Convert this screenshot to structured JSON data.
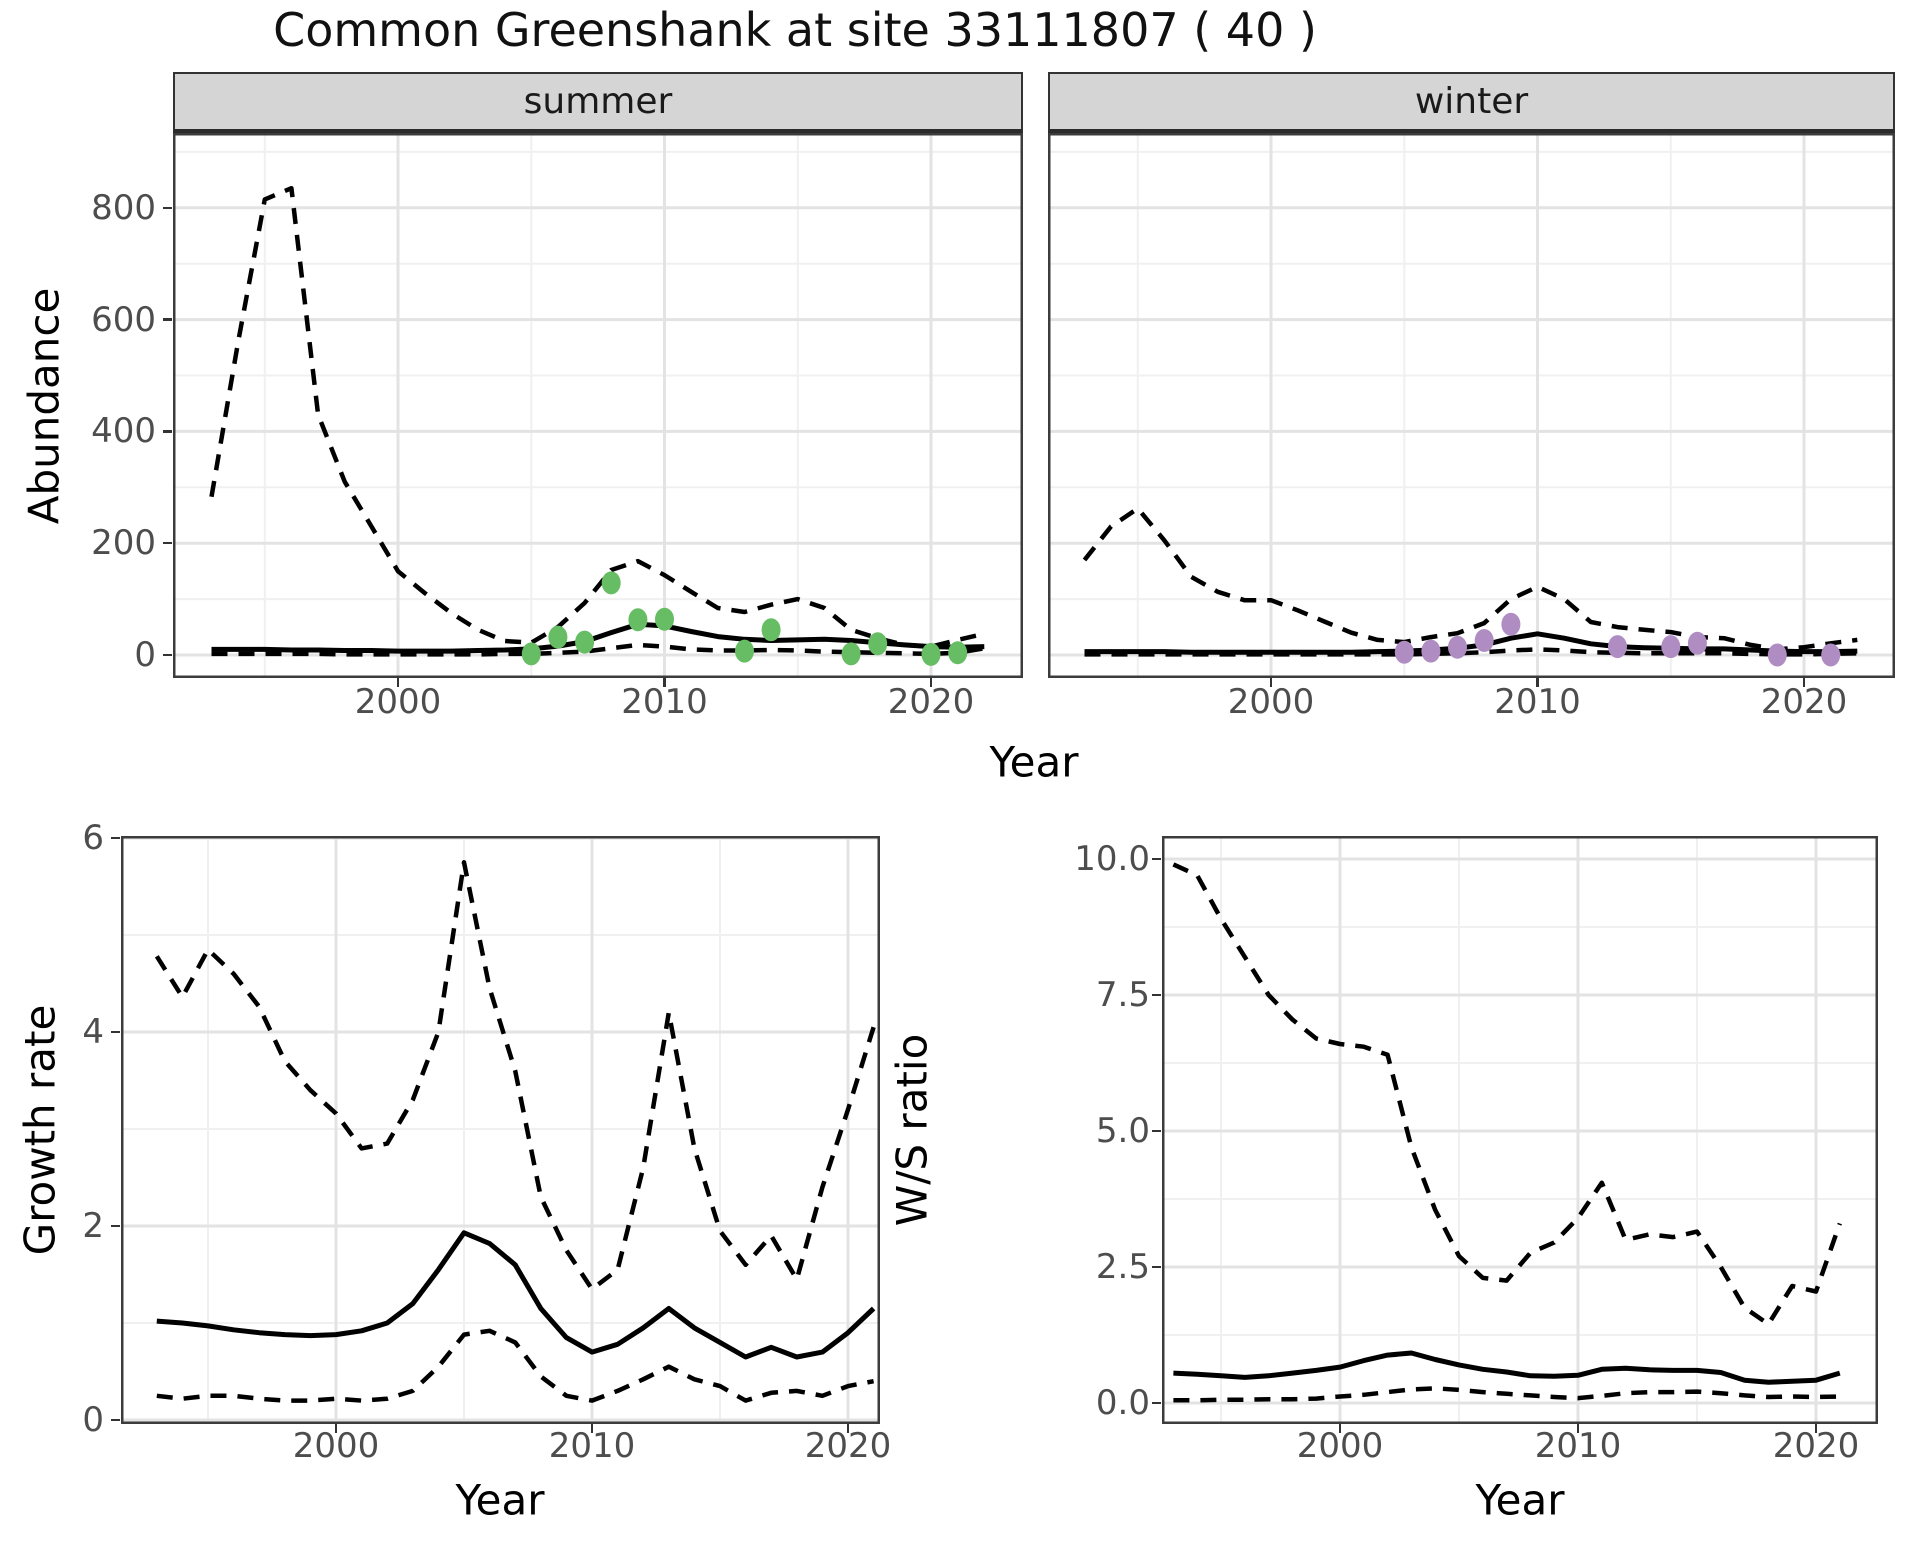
{
  "title": "Common Greenshank at site 33111807 ( 40 )",
  "top": {
    "facets": [
      {
        "label": "summer"
      },
      {
        "label": "winter"
      }
    ],
    "ylabel": "Abundance",
    "xlabel": "Year"
  },
  "bottom_left": {
    "ylabel": "Growth rate",
    "xlabel": "Year"
  },
  "bottom_right": {
    "ylabel": "W/S ratio",
    "xlabel": "Year"
  },
  "colors": {
    "summer_points": "#66bd63",
    "winter_points": "#af8dc3",
    "line": "#000000",
    "grid_major": "#e3e3e3",
    "grid_minor": "#f0f0f0",
    "panel_border": "#3c3c3c",
    "strip_fill": "#d5d5d5",
    "tick_text": "#4d4d4d"
  },
  "chart_data": [
    {
      "id": "abundance-summer",
      "type": "line",
      "facet": "summer",
      "xlabel": "Year",
      "ylabel": "Abundance",
      "years": [
        1993,
        1994,
        1995,
        1996,
        1997,
        1998,
        1999,
        2000,
        2001,
        2002,
        2003,
        2004,
        2005,
        2006,
        2007,
        2008,
        2009,
        2010,
        2011,
        2012,
        2013,
        2014,
        2015,
        2016,
        2017,
        2018,
        2019,
        2020,
        2021,
        2022
      ],
      "series": [
        {
          "name": "upper_ci",
          "style": "dashed",
          "values": [
            283,
            560,
            815,
            835,
            430,
            310,
            230,
            150,
            111,
            75,
            45,
            25,
            22,
            50,
            93,
            152,
            168,
            143,
            113,
            84,
            77,
            90,
            100,
            84,
            45,
            30,
            18,
            15,
            27,
            38
          ]
        },
        {
          "name": "estimate",
          "style": "solid",
          "values": [
            10,
            10,
            10,
            9,
            9,
            8,
            8,
            7,
            7,
            7,
            8,
            9,
            11,
            16,
            24,
            40,
            55,
            52,
            42,
            33,
            28,
            26,
            27,
            28,
            26,
            22,
            18,
            15,
            14,
            15
          ]
        },
        {
          "name": "lower_ci",
          "style": "dashed",
          "values": [
            2,
            2,
            2,
            2,
            2,
            1,
            1,
            1,
            1,
            1,
            1,
            2,
            2,
            4,
            6,
            12,
            18,
            15,
            10,
            8,
            8,
            9,
            8,
            6,
            5,
            4,
            3,
            2,
            4,
            12
          ]
        }
      ],
      "points": {
        "name": "observed_counts",
        "color": "#66bd63",
        "xy": [
          [
            2005,
            2
          ],
          [
            2006,
            32
          ],
          [
            2007,
            23
          ],
          [
            2008,
            129
          ],
          [
            2009,
            63
          ],
          [
            2010,
            64
          ],
          [
            2013,
            7
          ],
          [
            2014,
            45
          ],
          [
            2017,
            2
          ],
          [
            2018,
            20
          ],
          [
            2020,
            1
          ],
          [
            2021,
            4
          ]
        ]
      },
      "xlim": [
        1991.5,
        2023.5
      ],
      "ylim": [
        -41,
        934
      ],
      "xticks": [
        2000,
        2010,
        2020
      ],
      "xminor": [
        1995,
        2005,
        2015
      ],
      "yticks": [
        0,
        200,
        400,
        600,
        800
      ],
      "ytick_labels": [
        "0",
        "200",
        "400",
        "600",
        "800"
      ],
      "yminor": [
        100,
        300,
        500,
        700,
        900
      ],
      "grid": true,
      "legend": "none"
    },
    {
      "id": "abundance-winter",
      "type": "line",
      "facet": "winter",
      "xlabel": "Year",
      "ylabel": "Abundance",
      "years": [
        1993,
        1994,
        1995,
        1996,
        1997,
        1998,
        1999,
        2000,
        2001,
        2002,
        2003,
        2004,
        2005,
        2006,
        2007,
        2008,
        2009,
        2010,
        2011,
        2012,
        2013,
        2014,
        2015,
        2016,
        2017,
        2018,
        2019,
        2020,
        2021,
        2022
      ],
      "series": [
        {
          "name": "upper_ci",
          "style": "dashed",
          "values": [
            170,
            230,
            262,
            205,
            140,
            113,
            98,
            98,
            80,
            60,
            40,
            27,
            23,
            32,
            39,
            57,
            100,
            122,
            100,
            59,
            50,
            45,
            41,
            32,
            30,
            18,
            10,
            14,
            21,
            27
          ]
        },
        {
          "name": "estimate",
          "style": "solid",
          "values": [
            6,
            6,
            6,
            6,
            5,
            5,
            5,
            5,
            5,
            5,
            5,
            6,
            7,
            9,
            12,
            18,
            30,
            38,
            30,
            20,
            15,
            13,
            12,
            11,
            11,
            9,
            7,
            6,
            6,
            7
          ]
        },
        {
          "name": "lower_ci",
          "style": "dashed",
          "values": [
            1,
            1,
            1,
            1,
            1,
            1,
            1,
            1,
            1,
            1,
            1,
            1,
            1,
            2,
            3,
            5,
            8,
            10,
            8,
            5,
            4,
            3,
            3,
            3,
            3,
            2,
            1,
            1,
            2,
            3
          ]
        }
      ],
      "points": {
        "name": "observed_counts",
        "color": "#af8dc3",
        "xy": [
          [
            2005,
            5
          ],
          [
            2006,
            7
          ],
          [
            2007,
            14
          ],
          [
            2008,
            26
          ],
          [
            2009,
            55
          ],
          [
            2013,
            15
          ],
          [
            2015,
            15
          ],
          [
            2016,
            21
          ],
          [
            2019,
            0
          ],
          [
            2021,
            0
          ]
        ]
      },
      "xlim": [
        1991.5,
        2023.5
      ],
      "ylim": [
        -41,
        934
      ],
      "xticks": [
        2000,
        2010,
        2020
      ],
      "xminor": [
        1995,
        2005,
        2015
      ],
      "yticks": [
        0,
        200,
        400,
        600,
        800
      ],
      "ytick_labels": [
        "0",
        "200",
        "400",
        "600",
        "800"
      ],
      "yminor": [
        100,
        300,
        500,
        700,
        900
      ],
      "grid": true,
      "legend": "none"
    },
    {
      "id": "growth-rate",
      "type": "line",
      "xlabel": "Year",
      "ylabel": "Growth rate",
      "years": [
        1993,
        1994,
        1995,
        1996,
        1997,
        1998,
        1999,
        2000,
        2001,
        2002,
        2003,
        2004,
        2005,
        2006,
        2007,
        2008,
        2009,
        2010,
        2011,
        2012,
        2013,
        2014,
        2015,
        2016,
        2017,
        2018,
        2019,
        2020,
        2021
      ],
      "series": [
        {
          "name": "upper_ci",
          "style": "dashed",
          "values": [
            4.78,
            4.36,
            4.85,
            4.6,
            4.26,
            3.7,
            3.4,
            3.16,
            2.8,
            2.85,
            3.3,
            4.0,
            5.75,
            4.45,
            3.6,
            2.3,
            1.75,
            1.35,
            1.55,
            2.6,
            4.2,
            2.8,
            1.95,
            1.6,
            1.9,
            1.45,
            2.4,
            3.2,
            4.05
          ]
        },
        {
          "name": "estimate",
          "style": "solid",
          "values": [
            1.02,
            1.0,
            0.97,
            0.93,
            0.9,
            0.88,
            0.87,
            0.88,
            0.92,
            1.0,
            1.2,
            1.55,
            1.93,
            1.82,
            1.6,
            1.15,
            0.85,
            0.7,
            0.78,
            0.95,
            1.15,
            0.95,
            0.8,
            0.65,
            0.75,
            0.65,
            0.7,
            0.9,
            1.15
          ]
        },
        {
          "name": "lower_ci",
          "style": "dashed",
          "values": [
            0.25,
            0.22,
            0.25,
            0.25,
            0.22,
            0.2,
            0.2,
            0.22,
            0.2,
            0.22,
            0.3,
            0.55,
            0.88,
            0.92,
            0.8,
            0.45,
            0.25,
            0.2,
            0.3,
            0.42,
            0.55,
            0.42,
            0.35,
            0.2,
            0.28,
            0.3,
            0.25,
            0.35,
            0.4
          ]
        }
      ],
      "xlim": [
        1991.6,
        2021.3
      ],
      "ylim": [
        0,
        6.06
      ],
      "xticks": [
        2000,
        2010,
        2020
      ],
      "xminor": [
        1995,
        2005,
        2015
      ],
      "yticks": [
        0,
        2,
        4,
        6
      ],
      "ytick_labels": [
        "0",
        "2",
        "4",
        "6"
      ],
      "yminor": [
        1,
        3,
        5
      ],
      "grid": true,
      "legend": "none"
    },
    {
      "id": "ws-ratio",
      "type": "line",
      "xlabel": "Year",
      "ylabel": "W/S ratio",
      "years": [
        1993,
        1994,
        1995,
        1996,
        1997,
        1998,
        1999,
        2000,
        2001,
        2002,
        2003,
        2004,
        2005,
        2006,
        2007,
        2008,
        2009,
        2010,
        2011,
        2012,
        2013,
        2014,
        2015,
        2016,
        2017,
        2018,
        2019,
        2020,
        2021
      ],
      "series": [
        {
          "name": "upper_ci",
          "style": "dashed",
          "values": [
            9.9,
            9.7,
            8.9,
            8.2,
            7.5,
            7.05,
            6.7,
            6.6,
            6.55,
            6.4,
            4.7,
            3.55,
            2.7,
            2.3,
            2.25,
            2.76,
            2.95,
            3.4,
            4.05,
            3.0,
            3.1,
            3.05,
            3.15,
            2.5,
            1.75,
            1.45,
            2.15,
            2.05,
            3.3
          ]
        },
        {
          "name": "estimate",
          "style": "solid",
          "values": [
            0.55,
            0.53,
            0.5,
            0.47,
            0.5,
            0.55,
            0.6,
            0.66,
            0.78,
            0.88,
            0.92,
            0.8,
            0.7,
            0.62,
            0.57,
            0.5,
            0.49,
            0.51,
            0.62,
            0.64,
            0.61,
            0.6,
            0.6,
            0.56,
            0.42,
            0.38,
            0.4,
            0.42,
            0.55
          ]
        },
        {
          "name": "lower_ci",
          "style": "dashed",
          "values": [
            0.05,
            0.05,
            0.06,
            0.06,
            0.07,
            0.07,
            0.08,
            0.12,
            0.15,
            0.2,
            0.25,
            0.27,
            0.24,
            0.2,
            0.17,
            0.14,
            0.11,
            0.09,
            0.13,
            0.18,
            0.2,
            0.2,
            0.21,
            0.18,
            0.14,
            0.11,
            0.12,
            0.11,
            0.12
          ]
        }
      ],
      "xlim": [
        1992.5,
        2022.6
      ],
      "ylim": [
        -0.48,
        10.43
      ],
      "xticks": [
        2000,
        2010,
        2020
      ],
      "xminor": [
        1995,
        2005,
        2015
      ],
      "yticks": [
        0,
        2.5,
        5,
        7.5,
        10
      ],
      "ytick_labels": [
        "0.0",
        "2.5",
        "5.0",
        "7.5",
        "10.0"
      ],
      "yminor": [
        1.25,
        3.75,
        6.25,
        8.75
      ],
      "grid": true,
      "legend": "none"
    }
  ]
}
